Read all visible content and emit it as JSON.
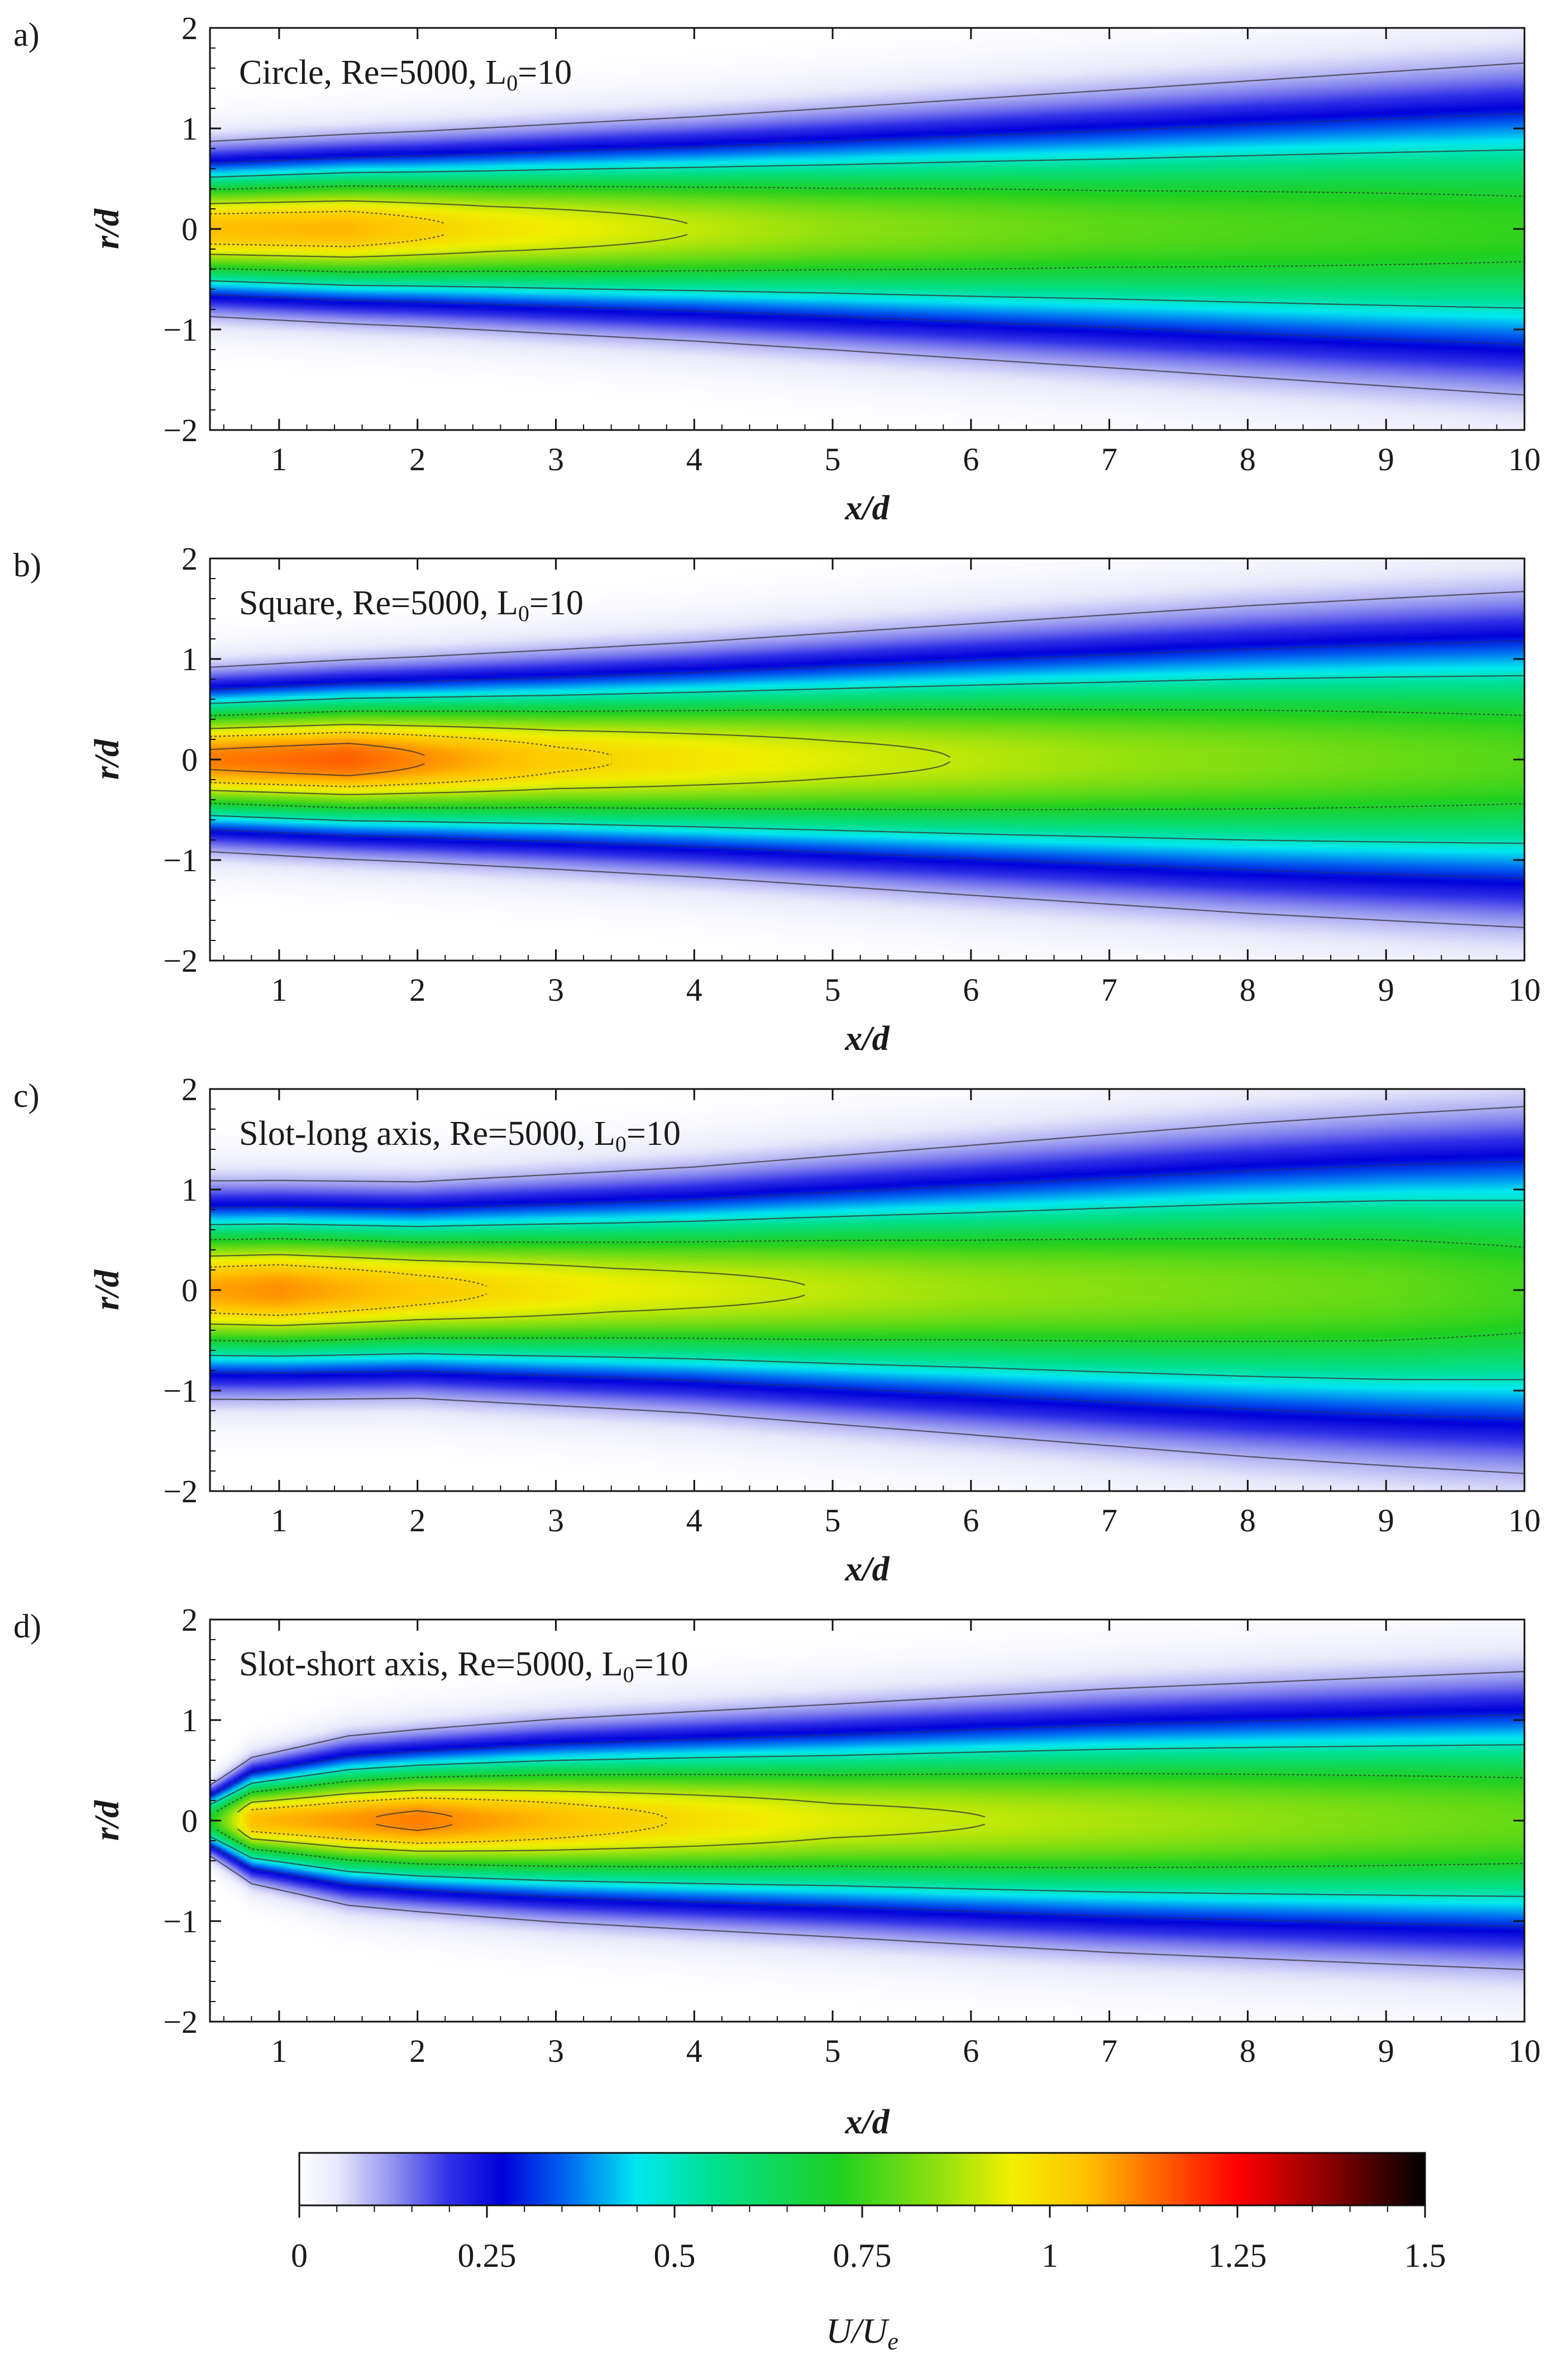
{
  "chart_data": {
    "type": "heatmap",
    "colorbar": {
      "title_main": "U/U",
      "title_sub": "e",
      "range": [
        0,
        1.5
      ],
      "ticks": [
        "0",
        "0.25",
        "0.5",
        "0.75",
        "1",
        "1.25",
        "1.5"
      ],
      "colormap": [
        [
          0,
          "#ffffff"
        ],
        [
          0.05,
          "#e8e8fb"
        ],
        [
          0.12,
          "#9898f0"
        ],
        [
          0.2,
          "#3030e8"
        ],
        [
          0.27,
          "#0000d8"
        ],
        [
          0.35,
          "#0060f0"
        ],
        [
          0.45,
          "#00e8f0"
        ],
        [
          0.55,
          "#00e090"
        ],
        [
          0.72,
          "#20d020"
        ],
        [
          0.85,
          "#90e010"
        ],
        [
          0.95,
          "#f0f000"
        ],
        [
          1.05,
          "#ffc000"
        ],
        [
          1.15,
          "#ff6000"
        ],
        [
          1.25,
          "#ff0000"
        ],
        [
          1.35,
          "#a00000"
        ],
        [
          1.5,
          "#000000"
        ]
      ]
    },
    "panels": [
      {
        "letter": "a)",
        "label": "Circle, Re=5000, L",
        "label_sub": "0",
        "label_tail": "=10",
        "xlabel": "x/d",
        "ylabel": "r/d",
        "xlim": [
          0.5,
          10
        ],
        "ylim": [
          -2,
          2
        ],
        "xticks": [
          "1",
          "2",
          "3",
          "4",
          "5",
          "6",
          "7",
          "8",
          "9",
          "10"
        ],
        "yticks": [
          "2",
          "1",
          "0",
          "−1",
          "−2"
        ],
        "core_velocity": [
          [
            0.5,
            1.05
          ],
          [
            1.5,
            1.06
          ],
          [
            2.5,
            0.98
          ],
          [
            4,
            0.9
          ],
          [
            5,
            0.85
          ],
          [
            7,
            0.79
          ],
          [
            10,
            0.74
          ]
        ],
        "half_width": [
          [
            0.5,
            0.5
          ],
          [
            2,
            0.56
          ],
          [
            4,
            0.66
          ],
          [
            6,
            0.78
          ],
          [
            8,
            0.9
          ],
          [
            10,
            1.02
          ]
        ],
        "potential_core_shape": 1.0
      },
      {
        "letter": "b)",
        "label": "Square, Re=5000, L",
        "label_sub": "0",
        "label_tail": "=10",
        "xlabel": "x/d",
        "ylabel": "r/d",
        "xlim": [
          0.5,
          10
        ],
        "ylim": [
          -2,
          2
        ],
        "xticks": [
          "1",
          "2",
          "3",
          "4",
          "5",
          "6",
          "7",
          "8",
          "9",
          "10"
        ],
        "yticks": [
          "2",
          "1",
          "0",
          "−1",
          "−2"
        ],
        "core_velocity": [
          [
            0.5,
            1.12
          ],
          [
            1.5,
            1.15
          ],
          [
            3,
            1.02
          ],
          [
            5,
            0.93
          ],
          [
            7,
            0.86
          ],
          [
            10,
            0.78
          ]
        ],
        "half_width": [
          [
            0.5,
            0.52
          ],
          [
            2,
            0.58
          ],
          [
            4,
            0.68
          ],
          [
            6,
            0.8
          ],
          [
            8,
            0.92
          ],
          [
            10,
            1.02
          ]
        ],
        "potential_core_shape": 1.0
      },
      {
        "letter": "c)",
        "label": "Slot-long axis, Re=5000, L",
        "label_sub": "0",
        "label_tail": "=10",
        "xlabel": "x/d",
        "ylabel": "r/d",
        "xlim": [
          0.5,
          10
        ],
        "ylim": [
          -2,
          2
        ],
        "xticks": [
          "1",
          "2",
          "3",
          "4",
          "5",
          "6",
          "7",
          "8",
          "9",
          "10"
        ],
        "yticks": [
          "2",
          "1",
          "0",
          "−1",
          "−2"
        ],
        "core_velocity": [
          [
            0.5,
            1.08
          ],
          [
            1,
            1.1
          ],
          [
            2,
            1.03
          ],
          [
            3.4,
            0.95
          ],
          [
            6,
            0.86
          ],
          [
            9,
            0.8
          ],
          [
            10,
            0.76
          ]
        ],
        "half_width": [
          [
            0.5,
            0.62
          ],
          [
            1,
            0.62
          ],
          [
            2,
            0.62
          ],
          [
            4,
            0.72
          ],
          [
            6,
            0.86
          ],
          [
            8,
            1.0
          ],
          [
            10,
            1.12
          ]
        ],
        "potential_core_shape": 1.0
      },
      {
        "letter": "d)",
        "label": "Slot-short axis, Re=5000, L",
        "label_sub": "0",
        "label_tail": "=10",
        "xlabel": "x/d",
        "ylabel": "r/d",
        "xlim": [
          0.5,
          10
        ],
        "ylim": [
          -2,
          2
        ],
        "xticks": [
          "1",
          "2",
          "3",
          "4",
          "5",
          "6",
          "7",
          "8",
          "9",
          "10"
        ],
        "yticks": [
          "2",
          "1",
          "0",
          "−1",
          "−2"
        ],
        "core_velocity": [
          [
            0.5,
            0.7
          ],
          [
            0.8,
            1.05
          ],
          [
            2,
            1.12
          ],
          [
            3.3,
            1.03
          ],
          [
            5,
            0.93
          ],
          [
            8.4,
            0.84
          ],
          [
            10,
            0.8
          ]
        ],
        "half_width": [
          [
            0.5,
            0.22
          ],
          [
            0.8,
            0.36
          ],
          [
            1.5,
            0.48
          ],
          [
            3,
            0.58
          ],
          [
            5,
            0.68
          ],
          [
            7,
            0.78
          ],
          [
            10,
            0.9
          ]
        ],
        "potential_core_shape": 1.0
      }
    ]
  }
}
